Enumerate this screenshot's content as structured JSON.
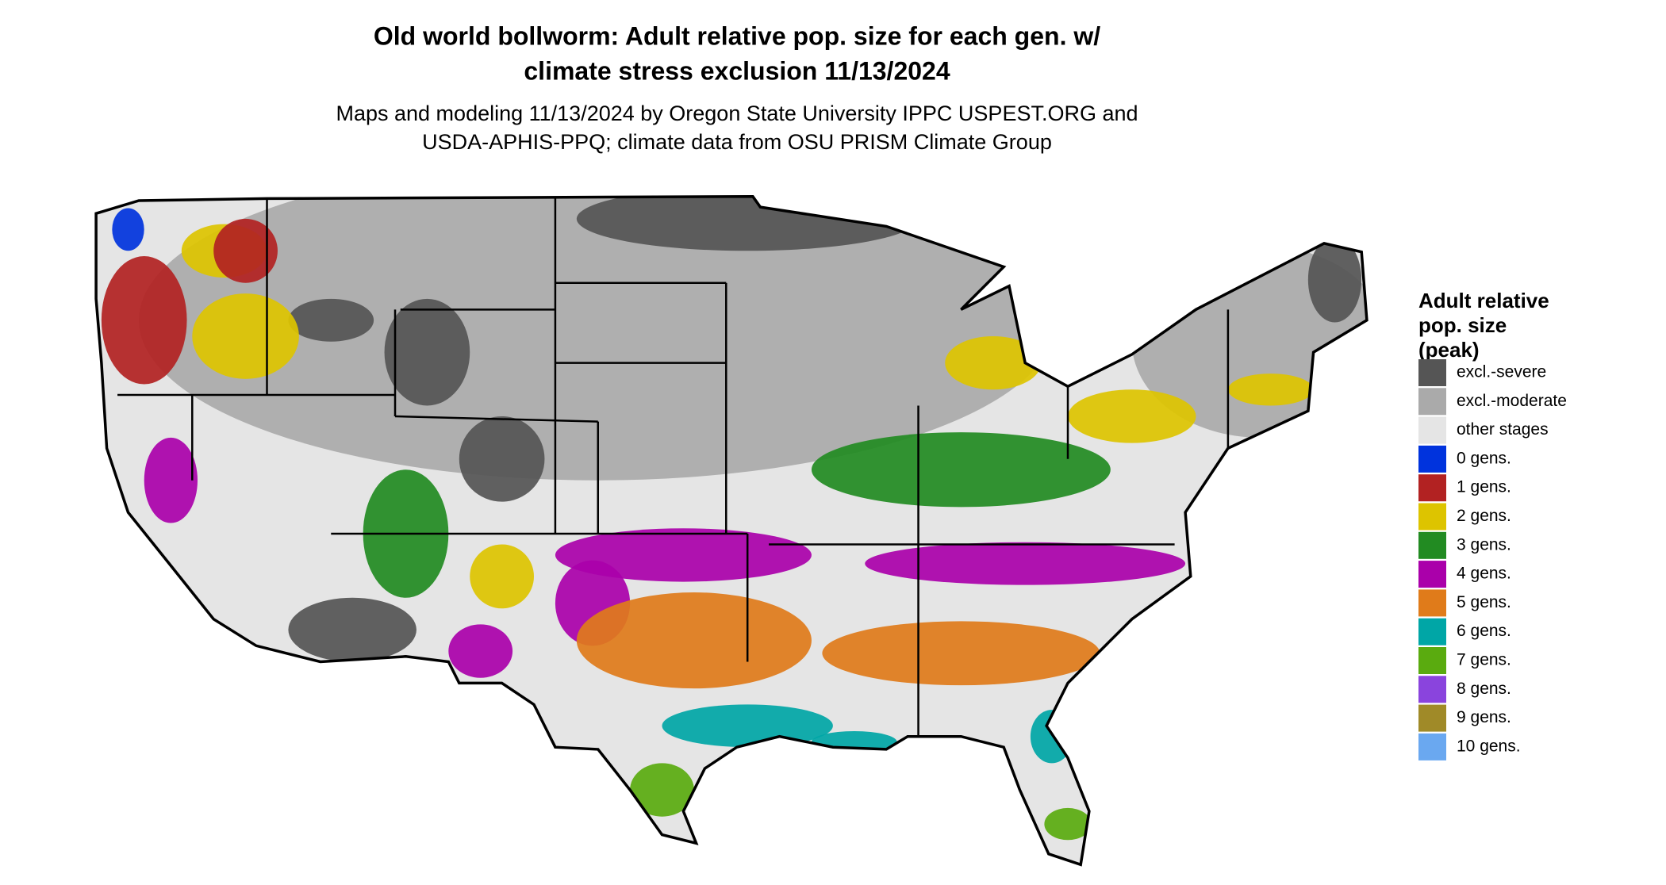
{
  "header": {
    "title": [
      "Old world bollworm: Adult relative pop. size for each gen. w/",
      "climate stress exclusion 11/13/2024"
    ],
    "subtitle": [
      "Maps and modeling 11/13/2024 by Oregon State University IPPC USPEST.ORG and",
      "USDA-APHIS-PPQ; climate data from OSU PRISM Climate Group"
    ]
  },
  "legend": {
    "title": [
      "Adult relative",
      "pop. size",
      "(peak)"
    ],
    "items": [
      {
        "label": "excl.-severe",
        "color": "#555555"
      },
      {
        "label": "excl.-moderate",
        "color": "#aaaaaa"
      },
      {
        "label": "other stages",
        "color": "#e5e5e5"
      },
      {
        "label": "0 gens.",
        "color": "#0033dd"
      },
      {
        "label": "1 gens.",
        "color": "#b22222"
      },
      {
        "label": "2 gens.",
        "color": "#ddc400"
      },
      {
        "label": "3 gens.",
        "color": "#228b22"
      },
      {
        "label": "4 gens.",
        "color": "#aa00aa"
      },
      {
        "label": "5 gens.",
        "color": "#e07b1a"
      },
      {
        "label": "6 gens.",
        "color": "#00a6a6"
      },
      {
        "label": "7 gens.",
        "color": "#5aab0f"
      },
      {
        "label": "8 gens.",
        "color": "#8a44dd"
      },
      {
        "label": "9 gens.",
        "color": "#a08a28"
      },
      {
        "label": "10 gens.",
        "color": "#6aa8f0"
      }
    ]
  }
}
